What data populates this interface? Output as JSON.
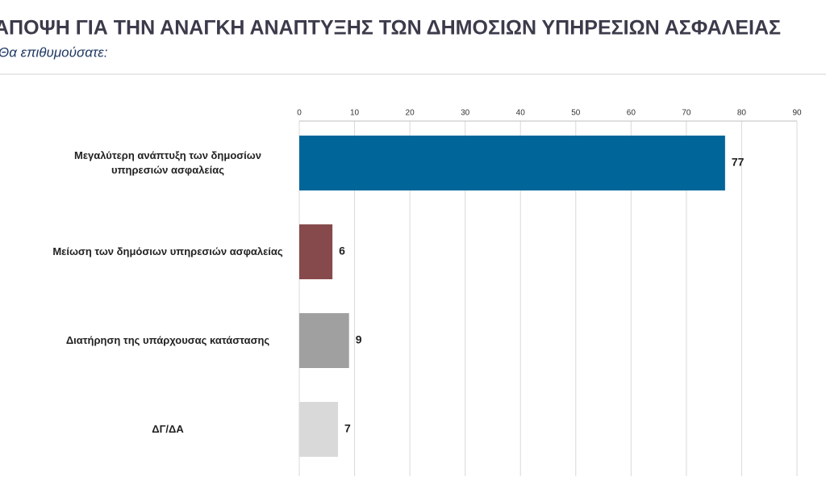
{
  "chart_data": {
    "type": "bar",
    "orientation": "horizontal",
    "title": "ΑΠΟΨΗ ΓΙΑ ΤΗΝ ΑΝΑΓΚΗ ΑΝΑΠΤΥΞΗΣ ΤΩΝ ΔΗΜΟΣΙΩΝ ΥΠΗΡΕΣΙΩΝ ΑΣΦΑΛΕΙΑΣ",
    "subtitle": "Θα επιθυμούσατε:",
    "categories": [
      "Μεγαλύτερη ανάπτυξη των δημοσίων υπηρεσιών ασφαλείας",
      "Μείωση των δημόσιων υπηρεσιών ασφαλείας",
      "Διατήρηση της υπάρχουσας κατάστασης",
      "ΔΓ/ΔΑ"
    ],
    "values": [
      77,
      6,
      9,
      7
    ],
    "colors": [
      "#006699",
      "#874a4c",
      "#a0a0a0",
      "#d9d9d9"
    ],
    "xlim": [
      0,
      90
    ],
    "xticks": [
      0,
      10,
      20,
      30,
      40,
      50,
      60,
      70,
      80,
      90
    ],
    "grid": true
  }
}
